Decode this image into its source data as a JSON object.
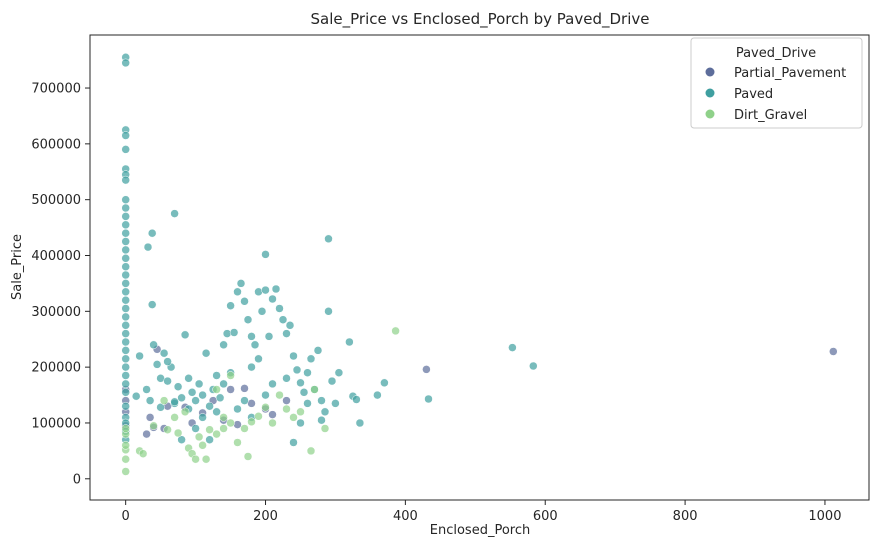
{
  "chart_data": {
    "type": "scatter",
    "title": "Sale_Price vs Enclosed_Porch by Paved_Drive",
    "xlabel": "Enclosed_Porch",
    "ylabel": "Sale_Price",
    "xlim": [
      -51,
      1063
    ],
    "ylim": [
      -38000,
      795000
    ],
    "xticks": [
      0,
      200,
      400,
      600,
      800,
      1000
    ],
    "yticks": [
      0,
      100000,
      200000,
      300000,
      400000,
      500000,
      600000,
      700000
    ],
    "grid": false,
    "legend": {
      "title": "Paved_Drive",
      "placement": "top-right"
    },
    "series": [
      {
        "name": "Partial_Pavement",
        "color": "#5d6d9b",
        "points": [
          [
            1012,
            228000
          ],
          [
            430,
            196000
          ],
          [
            0,
            120000
          ],
          [
            0,
            95000
          ],
          [
            0,
            140000
          ],
          [
            0,
            160000
          ],
          [
            35,
            110000
          ],
          [
            40,
            92000
          ],
          [
            55,
            90000
          ],
          [
            60,
            130000
          ],
          [
            85,
            128000
          ],
          [
            110,
            118000
          ],
          [
            125,
            140000
          ],
          [
            140,
            105000
          ],
          [
            150,
            160000
          ],
          [
            160,
            97000
          ],
          [
            180,
            135000
          ],
          [
            210,
            115000
          ],
          [
            230,
            140000
          ],
          [
            30,
            80000
          ],
          [
            95,
            100000
          ],
          [
            200,
            125000
          ],
          [
            45,
            232000
          ],
          [
            170,
            162000
          ]
        ]
      },
      {
        "name": "Paved",
        "color": "#3f9fa0",
        "points": [
          [
            0,
            755000
          ],
          [
            0,
            745000
          ],
          [
            0,
            625000
          ],
          [
            0,
            615000
          ],
          [
            0,
            590000
          ],
          [
            0,
            555000
          ],
          [
            0,
            545000
          ],
          [
            0,
            535000
          ],
          [
            0,
            500000
          ],
          [
            0,
            485000
          ],
          [
            0,
            470000
          ],
          [
            0,
            455000
          ],
          [
            0,
            440000
          ],
          [
            0,
            425000
          ],
          [
            0,
            410000
          ],
          [
            0,
            395000
          ],
          [
            0,
            380000
          ],
          [
            0,
            365000
          ],
          [
            0,
            350000
          ],
          [
            0,
            335000
          ],
          [
            0,
            320000
          ],
          [
            0,
            305000
          ],
          [
            0,
            290000
          ],
          [
            0,
            275000
          ],
          [
            0,
            260000
          ],
          [
            0,
            245000
          ],
          [
            0,
            230000
          ],
          [
            0,
            215000
          ],
          [
            0,
            200000
          ],
          [
            0,
            185000
          ],
          [
            0,
            170000
          ],
          [
            0,
            155000
          ],
          [
            0,
            130000
          ],
          [
            0,
            110000
          ],
          [
            0,
            100000
          ],
          [
            0,
            85000
          ],
          [
            0,
            70000
          ],
          [
            70,
            475000
          ],
          [
            38,
            440000
          ],
          [
            32,
            415000
          ],
          [
            290,
            430000
          ],
          [
            200,
            402000
          ],
          [
            38,
            312000
          ],
          [
            15,
            148000
          ],
          [
            20,
            220000
          ],
          [
            30,
            160000
          ],
          [
            35,
            140000
          ],
          [
            40,
            240000
          ],
          [
            45,
            205000
          ],
          [
            50,
            180000
          ],
          [
            55,
            225000
          ],
          [
            60,
            175000
          ],
          [
            65,
            200000
          ],
          [
            70,
            135000
          ],
          [
            75,
            165000
          ],
          [
            80,
            145000
          ],
          [
            85,
            258000
          ],
          [
            90,
            125000
          ],
          [
            95,
            155000
          ],
          [
            100,
            140000
          ],
          [
            105,
            170000
          ],
          [
            110,
            150000
          ],
          [
            115,
            225000
          ],
          [
            120,
            130000
          ],
          [
            125,
            160000
          ],
          [
            130,
            185000
          ],
          [
            135,
            145000
          ],
          [
            140,
            240000
          ],
          [
            145,
            260000
          ],
          [
            150,
            310000
          ],
          [
            155,
            262000
          ],
          [
            160,
            335000
          ],
          [
            165,
            350000
          ],
          [
            170,
            318000
          ],
          [
            175,
            285000
          ],
          [
            180,
            255000
          ],
          [
            185,
            240000
          ],
          [
            190,
            335000
          ],
          [
            195,
            300000
          ],
          [
            200,
            338000
          ],
          [
            205,
            255000
          ],
          [
            210,
            322000
          ],
          [
            215,
            340000
          ],
          [
            220,
            305000
          ],
          [
            225,
            285000
          ],
          [
            230,
            260000
          ],
          [
            235,
            275000
          ],
          [
            240,
            220000
          ],
          [
            245,
            195000
          ],
          [
            250,
            172000
          ],
          [
            255,
            155000
          ],
          [
            260,
            135000
          ],
          [
            265,
            215000
          ],
          [
            270,
            160000
          ],
          [
            275,
            230000
          ],
          [
            280,
            140000
          ],
          [
            285,
            120000
          ],
          [
            290,
            300000
          ],
          [
            295,
            175000
          ],
          [
            300,
            135000
          ],
          [
            305,
            190000
          ],
          [
            320,
            245000
          ],
          [
            325,
            148000
          ],
          [
            330,
            142000
          ],
          [
            335,
            100000
          ],
          [
            360,
            150000
          ],
          [
            370,
            172000
          ],
          [
            433,
            143000
          ],
          [
            553,
            235000
          ],
          [
            583,
            202000
          ],
          [
            60,
            210000
          ],
          [
            90,
            180000
          ],
          [
            110,
            110000
          ],
          [
            130,
            120000
          ],
          [
            150,
            190000
          ],
          [
            170,
            140000
          ],
          [
            190,
            215000
          ],
          [
            210,
            170000
          ],
          [
            230,
            180000
          ],
          [
            250,
            100000
          ],
          [
            240,
            65000
          ],
          [
            120,
            70000
          ],
          [
            100,
            90000
          ],
          [
            80,
            70000
          ],
          [
            200,
            150000
          ],
          [
            180,
            110000
          ],
          [
            160,
            125000
          ],
          [
            140,
            170000
          ],
          [
            260,
            190000
          ],
          [
            280,
            105000
          ],
          [
            70,
            138000
          ],
          [
            50,
            128000
          ],
          [
            180,
            200000
          ]
        ]
      },
      {
        "name": "Dirt_Gravel",
        "color": "#8fd18a",
        "points": [
          [
            0,
            13000
          ],
          [
            0,
            35000
          ],
          [
            0,
            52000
          ],
          [
            0,
            60000
          ],
          [
            0,
            80000
          ],
          [
            0,
            90000
          ],
          [
            386,
            265000
          ],
          [
            20,
            50000
          ],
          [
            25,
            45000
          ],
          [
            40,
            95000
          ],
          [
            60,
            88000
          ],
          [
            75,
            82000
          ],
          [
            90,
            55000
          ],
          [
            95,
            45000
          ],
          [
            100,
            35000
          ],
          [
            105,
            75000
          ],
          [
            110,
            60000
          ],
          [
            115,
            35000
          ],
          [
            120,
            88000
          ],
          [
            130,
            80000
          ],
          [
            140,
            90000
          ],
          [
            150,
            100000
          ],
          [
            160,
            65000
          ],
          [
            170,
            90000
          ],
          [
            175,
            40000
          ],
          [
            180,
            102000
          ],
          [
            190,
            112000
          ],
          [
            200,
            128000
          ],
          [
            210,
            100000
          ],
          [
            220,
            150000
          ],
          [
            230,
            125000
          ],
          [
            240,
            110000
          ],
          [
            250,
            120000
          ],
          [
            265,
            50000
          ],
          [
            270,
            160000
          ],
          [
            285,
            90000
          ],
          [
            150,
            185000
          ],
          [
            130,
            160000
          ],
          [
            140,
            110000
          ],
          [
            55,
            140000
          ],
          [
            70,
            110000
          ],
          [
            85,
            120000
          ]
        ]
      }
    ]
  }
}
